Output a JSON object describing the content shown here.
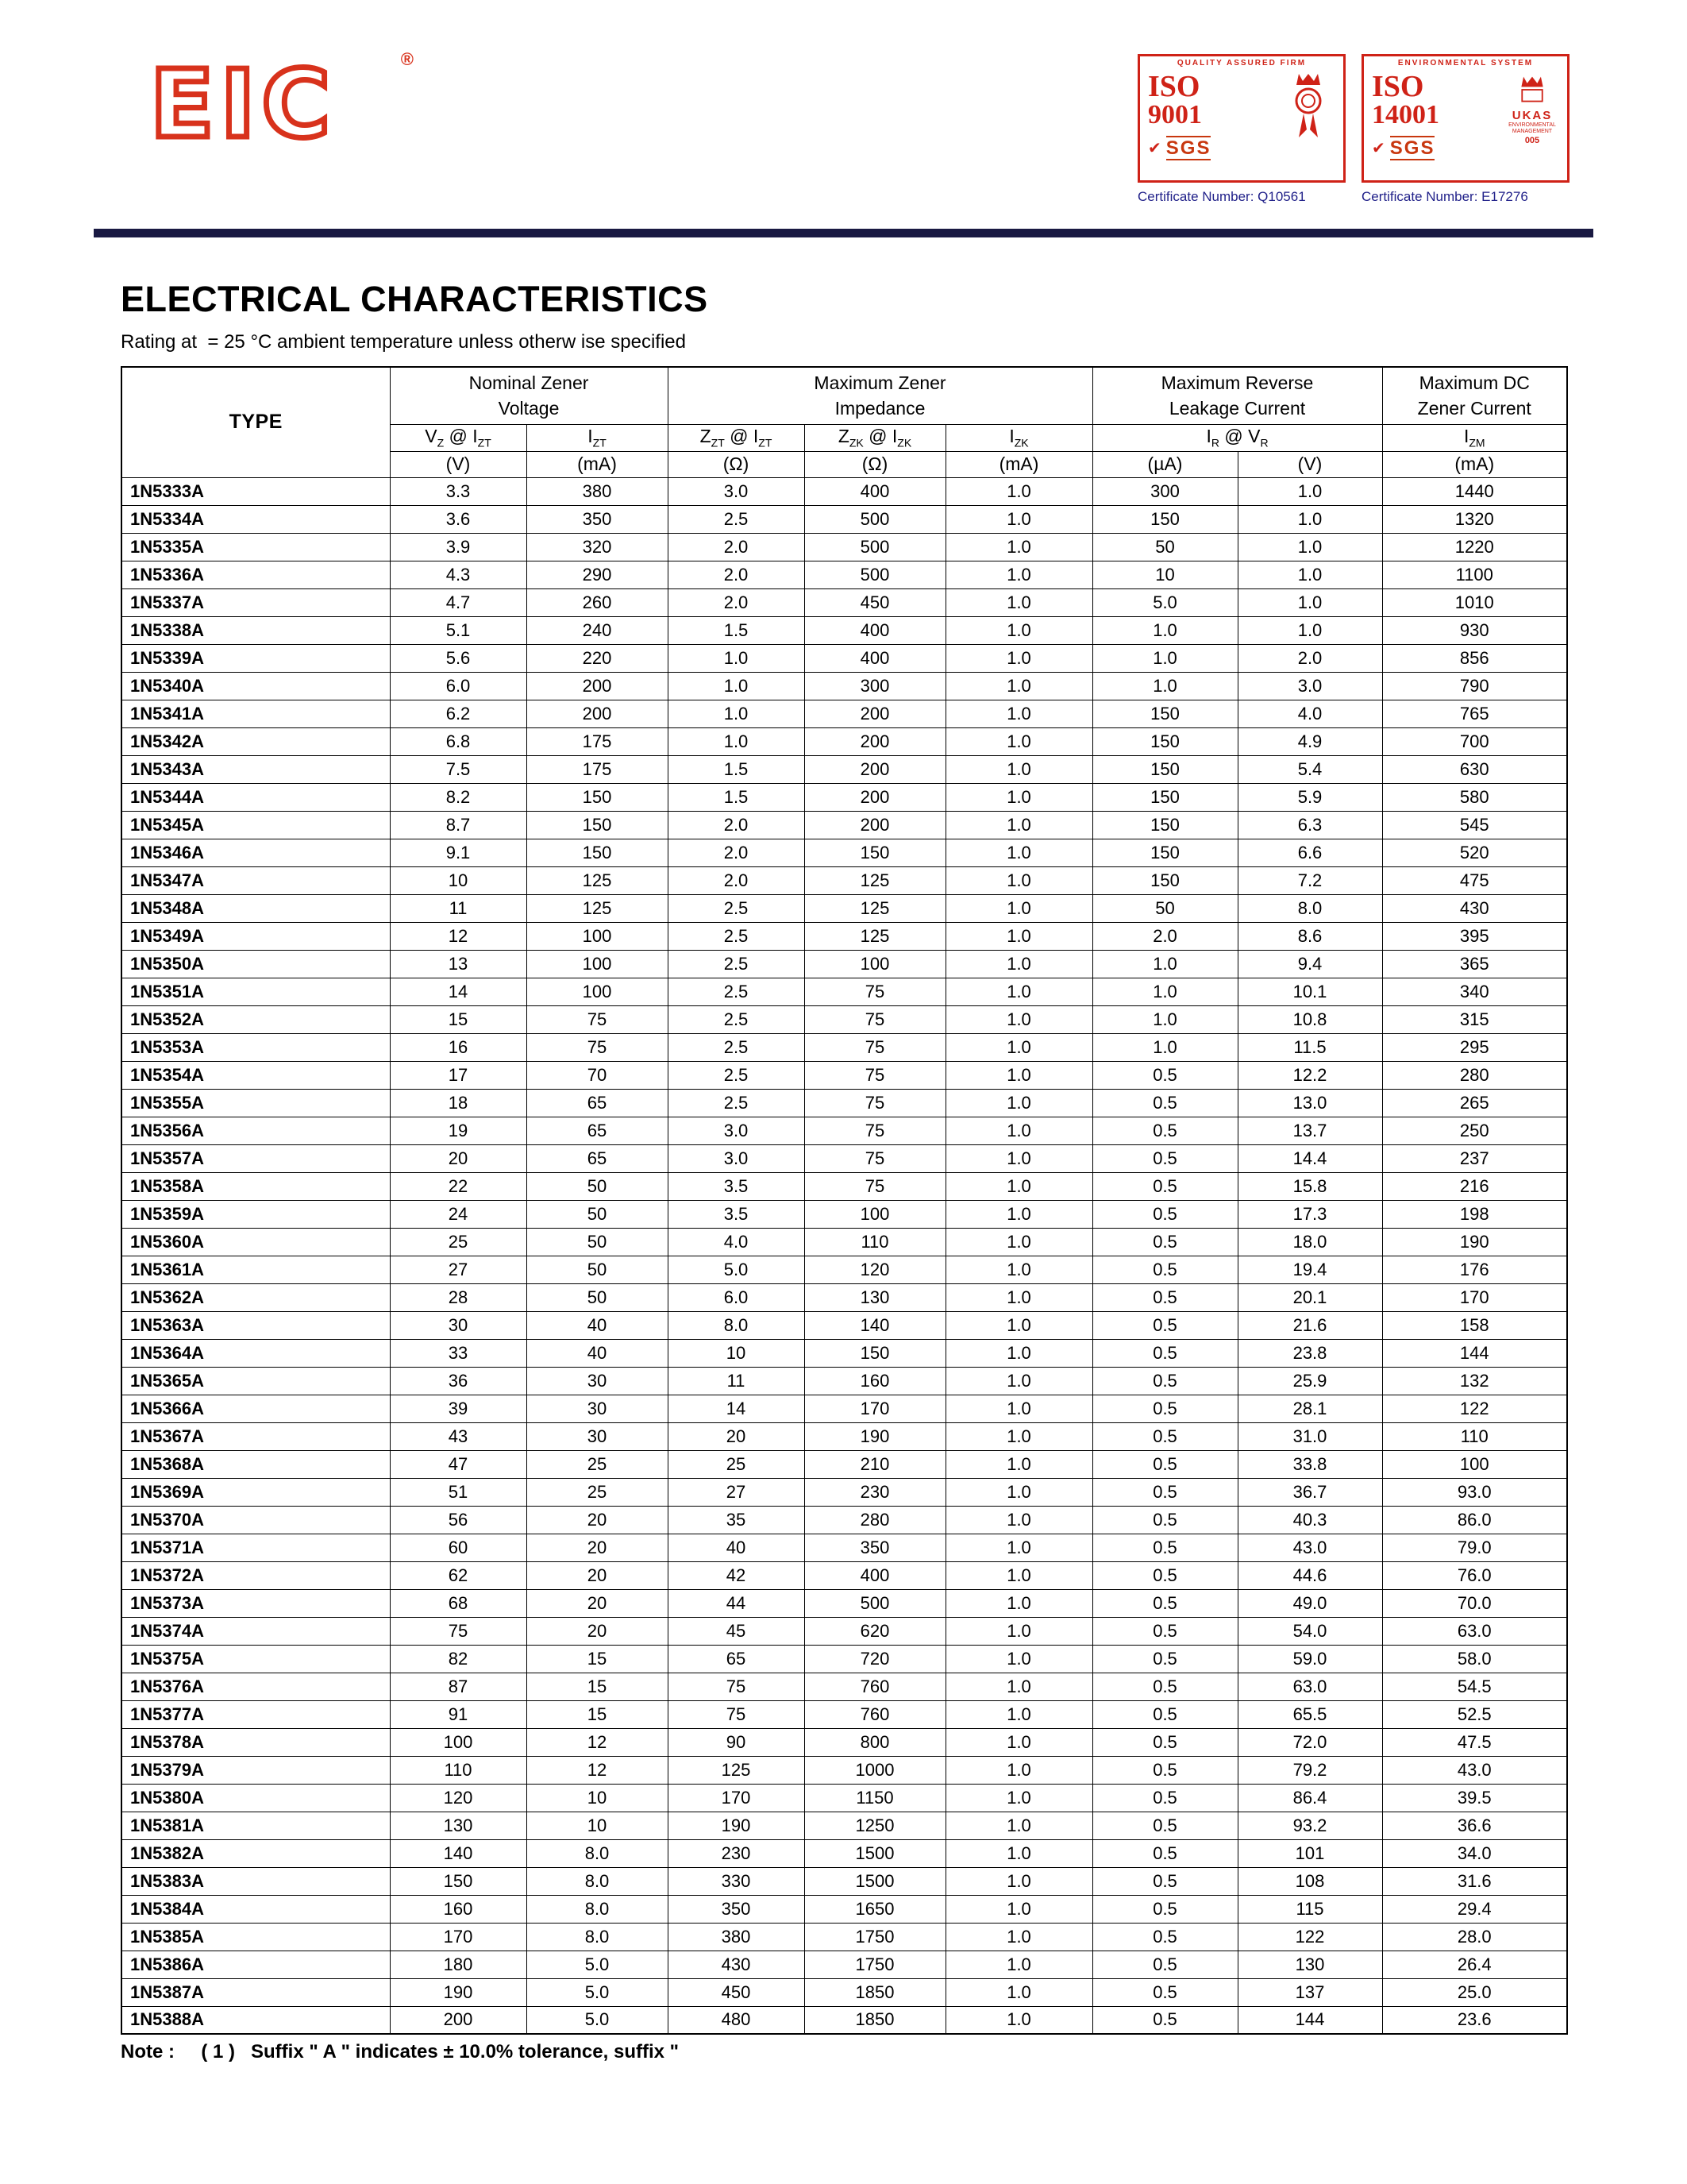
{
  "page": {
    "title": "ELECTRICAL CHARACTERISTICS",
    "subtitle": "Rating at  = 25 °C ambient temperature unless otherw ise specified",
    "note": "Note :     ( 1 )   Suffix \" A \" indicates ± 10.0% tolerance, suffix \""
  },
  "header": {
    "logo_text": "EIC",
    "registered_mark": "®",
    "badges": [
      {
        "arc": "QUALITY ASSURED FIRM",
        "iso": "ISO",
        "num": "9001",
        "sgs": "SGS",
        "side_label": "",
        "side_sub": "",
        "side_num": "",
        "cert": "Certificate Number: Q10561"
      },
      {
        "arc": "ENVIRONMENTAL SYSTEM",
        "iso": "ISO",
        "num": "14001",
        "sgs": "SGS",
        "side_label": "UKAS",
        "side_sub": "ENVIRONMENTAL MANAGEMENT",
        "side_num": "005",
        "cert": "Certificate Number: E17276"
      }
    ]
  },
  "table": {
    "groups": [
      {
        "line1": "TYPE",
        "line2": ""
      },
      {
        "line1": "Nominal Zener",
        "line2": "Voltage"
      },
      {
        "line1": "Maximum Zener",
        "line2": "Impedance"
      },
      {
        "line1": "Maximum Reverse",
        "line2": "Leakage Current"
      },
      {
        "line1": "Maximum DC",
        "line2": "Zener Current"
      }
    ],
    "symbols": [
      {
        "a": "V",
        "as": "Z",
        "b": " @ I",
        "bs": "ZT"
      },
      {
        "a": "I",
        "as": "ZT",
        "b": "",
        "bs": ""
      },
      {
        "a": "Z",
        "as": "ZT",
        "b": " @ I",
        "bs": "ZT"
      },
      {
        "a": "Z",
        "as": "ZK",
        "b": " @ I",
        "bs": "ZK"
      },
      {
        "a": "I",
        "as": "ZK",
        "b": "",
        "bs": ""
      },
      {
        "a": "I",
        "as": "R",
        "b": "  @  V",
        "bs": "R"
      },
      {
        "a": "I",
        "as": "ZM",
        "b": "",
        "bs": ""
      }
    ],
    "units": [
      "(V)",
      "(mA)",
      "(Ω)",
      "(Ω)",
      "(mA)",
      "(µA)",
      "(V)",
      "(mA)"
    ],
    "rows": [
      [
        "1N5333A",
        "3.3",
        "380",
        "3.0",
        "400",
        "1.0",
        "300",
        "1.0",
        "1440"
      ],
      [
        "1N5334A",
        "3.6",
        "350",
        "2.5",
        "500",
        "1.0",
        "150",
        "1.0",
        "1320"
      ],
      [
        "1N5335A",
        "3.9",
        "320",
        "2.0",
        "500",
        "1.0",
        "50",
        "1.0",
        "1220"
      ],
      [
        "1N5336A",
        "4.3",
        "290",
        "2.0",
        "500",
        "1.0",
        "10",
        "1.0",
        "1100"
      ],
      [
        "1N5337A",
        "4.7",
        "260",
        "2.0",
        "450",
        "1.0",
        "5.0",
        "1.0",
        "1010"
      ],
      [
        "1N5338A",
        "5.1",
        "240",
        "1.5",
        "400",
        "1.0",
        "1.0",
        "1.0",
        "930"
      ],
      [
        "1N5339A",
        "5.6",
        "220",
        "1.0",
        "400",
        "1.0",
        "1.0",
        "2.0",
        "856"
      ],
      [
        "1N5340A",
        "6.0",
        "200",
        "1.0",
        "300",
        "1.0",
        "1.0",
        "3.0",
        "790"
      ],
      [
        "1N5341A",
        "6.2",
        "200",
        "1.0",
        "200",
        "1.0",
        "150",
        "4.0",
        "765"
      ],
      [
        "1N5342A",
        "6.8",
        "175",
        "1.0",
        "200",
        "1.0",
        "150",
        "4.9",
        "700"
      ],
      [
        "1N5343A",
        "7.5",
        "175",
        "1.5",
        "200",
        "1.0",
        "150",
        "5.4",
        "630"
      ],
      [
        "1N5344A",
        "8.2",
        "150",
        "1.5",
        "200",
        "1.0",
        "150",
        "5.9",
        "580"
      ],
      [
        "1N5345A",
        "8.7",
        "150",
        "2.0",
        "200",
        "1.0",
        "150",
        "6.3",
        "545"
      ],
      [
        "1N5346A",
        "9.1",
        "150",
        "2.0",
        "150",
        "1.0",
        "150",
        "6.6",
        "520"
      ],
      [
        "1N5347A",
        "10",
        "125",
        "2.0",
        "125",
        "1.0",
        "150",
        "7.2",
        "475"
      ],
      [
        "1N5348A",
        "11",
        "125",
        "2.5",
        "125",
        "1.0",
        "50",
        "8.0",
        "430"
      ],
      [
        "1N5349A",
        "12",
        "100",
        "2.5",
        "125",
        "1.0",
        "2.0",
        "8.6",
        "395"
      ],
      [
        "1N5350A",
        "13",
        "100",
        "2.5",
        "100",
        "1.0",
        "1.0",
        "9.4",
        "365"
      ],
      [
        "1N5351A",
        "14",
        "100",
        "2.5",
        "75",
        "1.0",
        "1.0",
        "10.1",
        "340"
      ],
      [
        "1N5352A",
        "15",
        "75",
        "2.5",
        "75",
        "1.0",
        "1.0",
        "10.8",
        "315"
      ],
      [
        "1N5353A",
        "16",
        "75",
        "2.5",
        "75",
        "1.0",
        "1.0",
        "11.5",
        "295"
      ],
      [
        "1N5354A",
        "17",
        "70",
        "2.5",
        "75",
        "1.0",
        "0.5",
        "12.2",
        "280"
      ],
      [
        "1N5355A",
        "18",
        "65",
        "2.5",
        "75",
        "1.0",
        "0.5",
        "13.0",
        "265"
      ],
      [
        "1N5356A",
        "19",
        "65",
        "3.0",
        "75",
        "1.0",
        "0.5",
        "13.7",
        "250"
      ],
      [
        "1N5357A",
        "20",
        "65",
        "3.0",
        "75",
        "1.0",
        "0.5",
        "14.4",
        "237"
      ],
      [
        "1N5358A",
        "22",
        "50",
        "3.5",
        "75",
        "1.0",
        "0.5",
        "15.8",
        "216"
      ],
      [
        "1N5359A",
        "24",
        "50",
        "3.5",
        "100",
        "1.0",
        "0.5",
        "17.3",
        "198"
      ],
      [
        "1N5360A",
        "25",
        "50",
        "4.0",
        "110",
        "1.0",
        "0.5",
        "18.0",
        "190"
      ],
      [
        "1N5361A",
        "27",
        "50",
        "5.0",
        "120",
        "1.0",
        "0.5",
        "19.4",
        "176"
      ],
      [
        "1N5362A",
        "28",
        "50",
        "6.0",
        "130",
        "1.0",
        "0.5",
        "20.1",
        "170"
      ],
      [
        "1N5363A",
        "30",
        "40",
        "8.0",
        "140",
        "1.0",
        "0.5",
        "21.6",
        "158"
      ],
      [
        "1N5364A",
        "33",
        "40",
        "10",
        "150",
        "1.0",
        "0.5",
        "23.8",
        "144"
      ],
      [
        "1N5365A",
        "36",
        "30",
        "11",
        "160",
        "1.0",
        "0.5",
        "25.9",
        "132"
      ],
      [
        "1N5366A",
        "39",
        "30",
        "14",
        "170",
        "1.0",
        "0.5",
        "28.1",
        "122"
      ],
      [
        "1N5367A",
        "43",
        "30",
        "20",
        "190",
        "1.0",
        "0.5",
        "31.0",
        "110"
      ],
      [
        "1N5368A",
        "47",
        "25",
        "25",
        "210",
        "1.0",
        "0.5",
        "33.8",
        "100"
      ],
      [
        "1N5369A",
        "51",
        "25",
        "27",
        "230",
        "1.0",
        "0.5",
        "36.7",
        "93.0"
      ],
      [
        "1N5370A",
        "56",
        "20",
        "35",
        "280",
        "1.0",
        "0.5",
        "40.3",
        "86.0"
      ],
      [
        "1N5371A",
        "60",
        "20",
        "40",
        "350",
        "1.0",
        "0.5",
        "43.0",
        "79.0"
      ],
      [
        "1N5372A",
        "62",
        "20",
        "42",
        "400",
        "1.0",
        "0.5",
        "44.6",
        "76.0"
      ],
      [
        "1N5373A",
        "68",
        "20",
        "44",
        "500",
        "1.0",
        "0.5",
        "49.0",
        "70.0"
      ],
      [
        "1N5374A",
        "75",
        "20",
        "45",
        "620",
        "1.0",
        "0.5",
        "54.0",
        "63.0"
      ],
      [
        "1N5375A",
        "82",
        "15",
        "65",
        "720",
        "1.0",
        "0.5",
        "59.0",
        "58.0"
      ],
      [
        "1N5376A",
        "87",
        "15",
        "75",
        "760",
        "1.0",
        "0.5",
        "63.0",
        "54.5"
      ],
      [
        "1N5377A",
        "91",
        "15",
        "75",
        "760",
        "1.0",
        "0.5",
        "65.5",
        "52.5"
      ],
      [
        "1N5378A",
        "100",
        "12",
        "90",
        "800",
        "1.0",
        "0.5",
        "72.0",
        "47.5"
      ],
      [
        "1N5379A",
        "110",
        "12",
        "125",
        "1000",
        "1.0",
        "0.5",
        "79.2",
        "43.0"
      ],
      [
        "1N5380A",
        "120",
        "10",
        "170",
        "1150",
        "1.0",
        "0.5",
        "86.4",
        "39.5"
      ],
      [
        "1N5381A",
        "130",
        "10",
        "190",
        "1250",
        "1.0",
        "0.5",
        "93.2",
        "36.6"
      ],
      [
        "1N5382A",
        "140",
        "8.0",
        "230",
        "1500",
        "1.0",
        "0.5",
        "101",
        "34.0"
      ],
      [
        "1N5383A",
        "150",
        "8.0",
        "330",
        "1500",
        "1.0",
        "0.5",
        "108",
        "31.6"
      ],
      [
        "1N5384A",
        "160",
        "8.0",
        "350",
        "1650",
        "1.0",
        "0.5",
        "115",
        "29.4"
      ],
      [
        "1N5385A",
        "170",
        "8.0",
        "380",
        "1750",
        "1.0",
        "0.5",
        "122",
        "28.0"
      ],
      [
        "1N5386A",
        "180",
        "5.0",
        "430",
        "1750",
        "1.0",
        "0.5",
        "130",
        "26.4"
      ],
      [
        "1N5387A",
        "190",
        "5.0",
        "450",
        "1850",
        "1.0",
        "0.5",
        "137",
        "25.0"
      ],
      [
        "1N5388A",
        "200",
        "5.0",
        "480",
        "1850",
        "1.0",
        "0.5",
        "144",
        "23.6"
      ]
    ]
  }
}
